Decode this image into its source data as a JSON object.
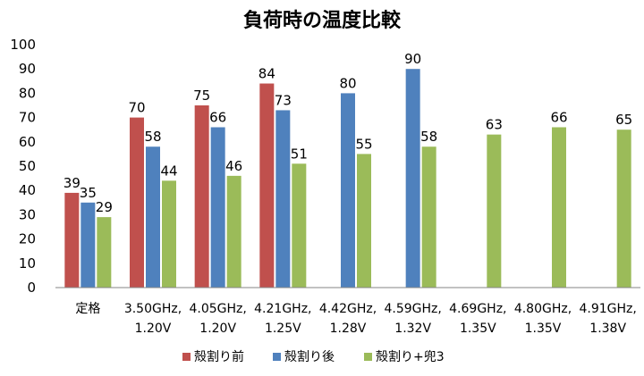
{
  "chart_data": {
    "type": "bar",
    "title": "負荷時の温度比較",
    "xlabel": "",
    "ylabel": "",
    "ylim": [
      0,
      100
    ],
    "ytick_step": 10,
    "grid": false,
    "legend_position": "bottom",
    "categories": [
      [
        "定格"
      ],
      [
        "3.50GHz,",
        "1.20V"
      ],
      [
        "4.05GHz,",
        "1.20V"
      ],
      [
        "4.21GHz,",
        "1.25V"
      ],
      [
        "4.42GHz,",
        "1.28V"
      ],
      [
        "4.59GHz,",
        "1.32V"
      ],
      [
        "4.69GHz,",
        "1.35V"
      ],
      [
        "4.80GHz,",
        "1.35V"
      ],
      [
        "4.91GHz,",
        "1.38V"
      ]
    ],
    "series": [
      {
        "name": "殻割り前",
        "color": "#c0504d",
        "values": [
          39,
          70,
          75,
          84,
          null,
          null,
          null,
          null,
          null
        ]
      },
      {
        "name": "殻割り後",
        "color": "#4f81bd",
        "values": [
          35,
          58,
          66,
          73,
          80,
          90,
          null,
          null,
          null
        ]
      },
      {
        "name": "殻割り+兜3",
        "color": "#9bbb59",
        "values": [
          29,
          44,
          46,
          51,
          55,
          58,
          63,
          66,
          65
        ]
      }
    ]
  }
}
